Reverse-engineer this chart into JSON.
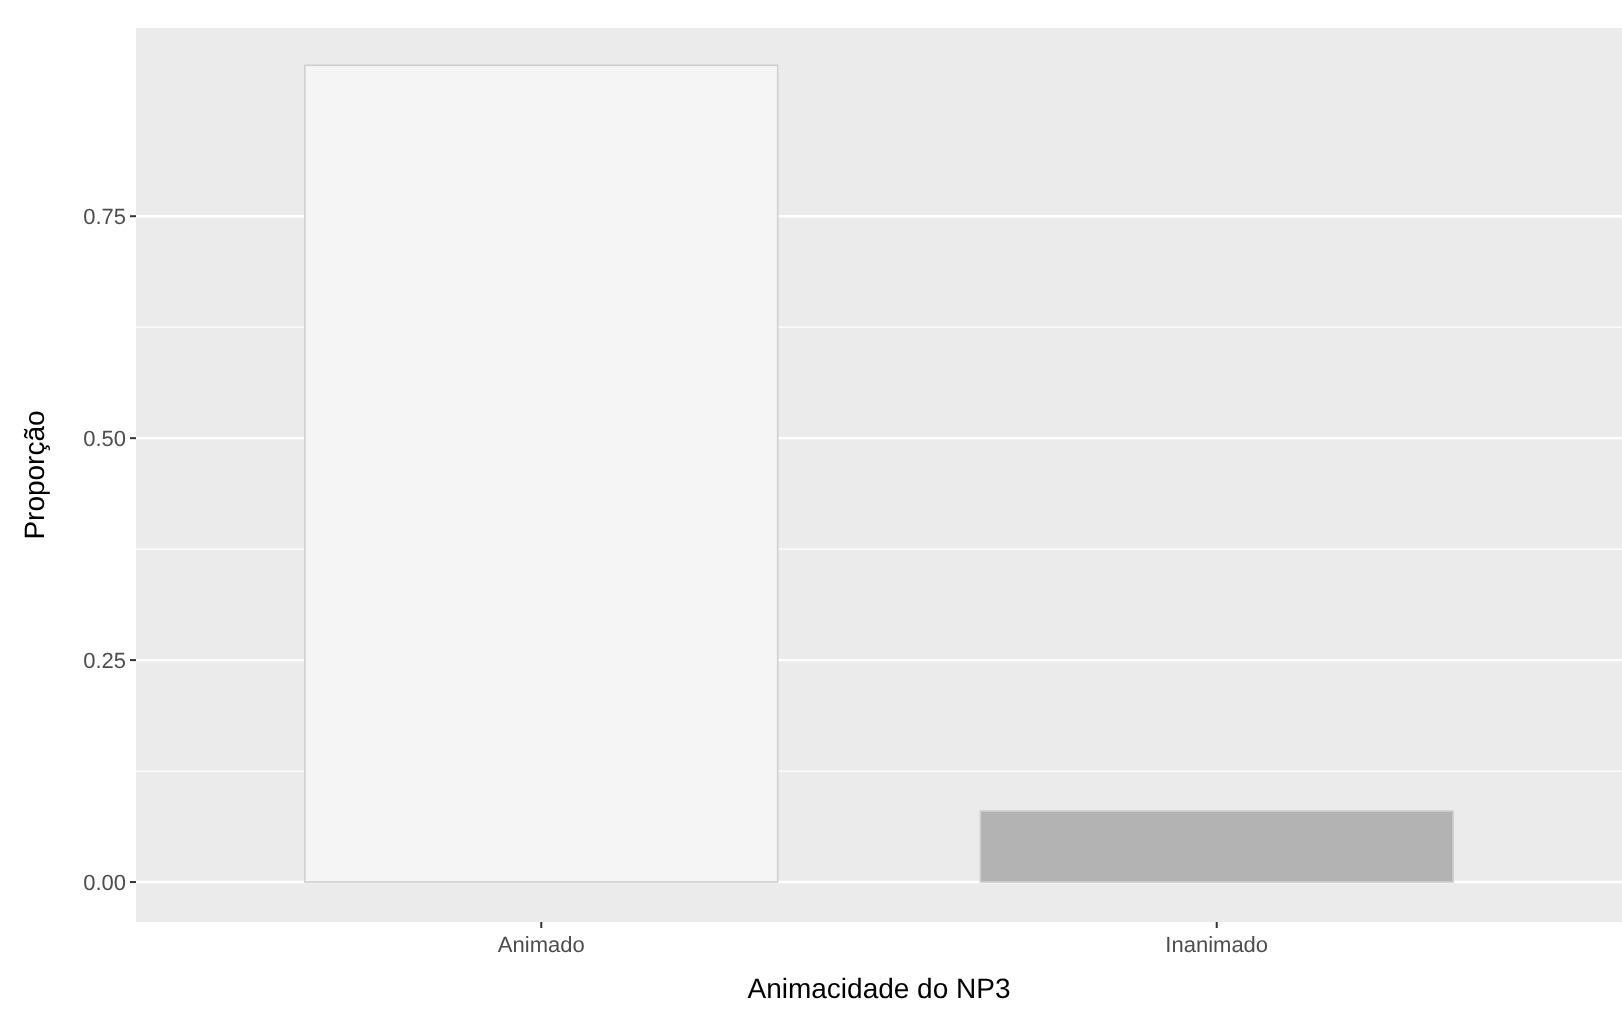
{
  "chart_data": {
    "type": "bar",
    "xlabel": "Animacidade do NP3",
    "ylabel": "Proporção",
    "categories": [
      "Animado",
      "Inanimado"
    ],
    "values": [
      0.92,
      0.08
    ],
    "colors": [
      "#f5f5f5",
      "#b3b3b3"
    ],
    "ylim": [
      -0.045,
      0.962
    ],
    "yticks": [
      {
        "value": 0,
        "label": "0.00"
      },
      {
        "value": 0.25,
        "label": "0.25"
      },
      {
        "value": 0.5,
        "label": "0.50"
      },
      {
        "value": 0.75,
        "label": "0.75"
      }
    ],
    "grid": "y"
  }
}
